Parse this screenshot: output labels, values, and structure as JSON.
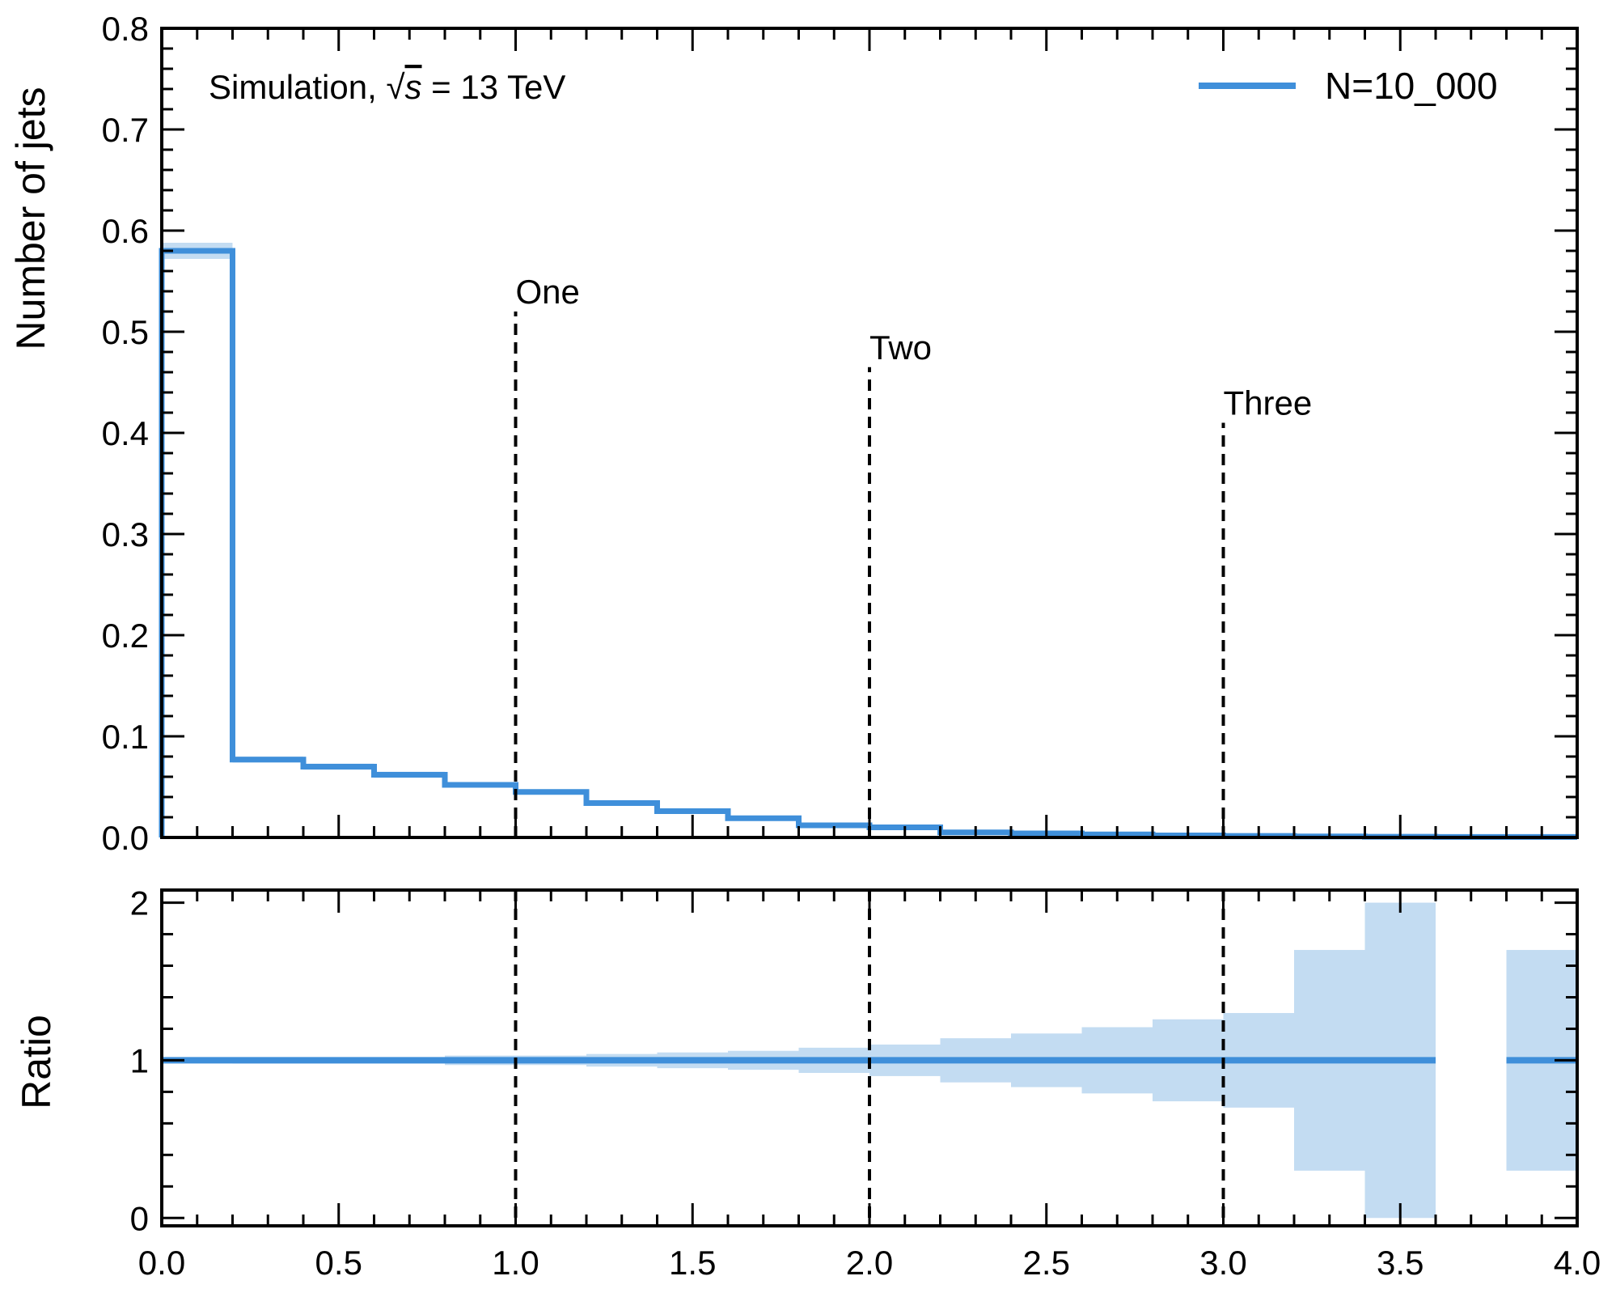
{
  "chart_data": [
    {
      "panel": "main",
      "type": "step",
      "ylabel": "Number of jets",
      "xlim": [
        0.0,
        4.0
      ],
      "ylim": [
        0.0,
        0.8
      ],
      "yticks": [
        "0.0",
        "0.1",
        "0.2",
        "0.3",
        "0.4",
        "0.5",
        "0.6",
        "0.7",
        "0.8"
      ],
      "annotation": {
        "prefix": "Simulation, ",
        "root": "s",
        "suffix": " = 13 TeV"
      },
      "color": "#3f8fda",
      "band_color": "#c3dcf2",
      "bin_edges": [
        0.0,
        0.2,
        0.4,
        0.6,
        0.8,
        1.0,
        1.2,
        1.4,
        1.6,
        1.8,
        2.0,
        2.2,
        2.4,
        2.6,
        2.8,
        3.0,
        3.2,
        3.4,
        3.6,
        3.8,
        4.0
      ],
      "series": [
        {
          "name": "N=10_000",
          "values": [
            0.58,
            0.077,
            0.07,
            0.062,
            0.052,
            0.045,
            0.034,
            0.026,
            0.019,
            0.012,
            0.01,
            0.005,
            0.004,
            0.003,
            0.002,
            0.0015,
            0.001,
            0.0007,
            0.0005,
            0.0005
          ],
          "errors": [
            0.008,
            0.003,
            0.003,
            0.003,
            0.002,
            0.002,
            0.002,
            0.0015,
            0.0013,
            0.001,
            0.001,
            0.0007,
            0.0006,
            0.0005,
            0.0004,
            0.0004,
            0.0003,
            0.0003,
            0.0002,
            0.0002
          ]
        }
      ],
      "vlines": [
        {
          "x": 1.0,
          "ymax": 0.52,
          "label": "One"
        },
        {
          "x": 2.0,
          "ymax": 0.465,
          "label": "Two"
        },
        {
          "x": 3.0,
          "ymax": 0.41,
          "label": "Three"
        }
      ],
      "legend": "top-right"
    },
    {
      "panel": "ratio",
      "type": "step",
      "ylabel": "Ratio",
      "xlim": [
        0.0,
        4.0
      ],
      "ylim": [
        -0.05,
        2.08
      ],
      "yticks": [
        "0",
        "1",
        "2"
      ],
      "xticks": [
        "0.0",
        "0.5",
        "1.0",
        "1.5",
        "2.0",
        "2.5",
        "3.0",
        "3.5",
        "4.0"
      ],
      "bin_edges": [
        0.0,
        0.2,
        0.4,
        0.6,
        0.8,
        1.0,
        1.2,
        1.4,
        1.6,
        1.8,
        2.0,
        2.2,
        2.4,
        2.6,
        2.8,
        3.0,
        3.2,
        3.4,
        3.6,
        3.8,
        4.0
      ],
      "values": [
        1,
        1,
        1,
        1,
        1,
        1,
        1,
        1,
        1,
        1,
        1,
        1,
        1,
        1,
        1,
        1,
        1,
        1,
        null,
        1
      ],
      "band_lower": [
        0.99,
        0.98,
        0.98,
        0.98,
        0.97,
        0.97,
        0.96,
        0.95,
        0.94,
        0.92,
        0.9,
        0.86,
        0.83,
        0.79,
        0.74,
        0.7,
        0.3,
        0.0,
        null,
        0.3
      ],
      "band_upper": [
        1.01,
        1.02,
        1.02,
        1.02,
        1.03,
        1.03,
        1.04,
        1.05,
        1.06,
        1.08,
        1.1,
        1.14,
        1.17,
        1.21,
        1.26,
        1.3,
        1.7,
        2.0,
        null,
        1.7
      ],
      "vlines": [
        1.0,
        2.0,
        3.0
      ]
    }
  ]
}
